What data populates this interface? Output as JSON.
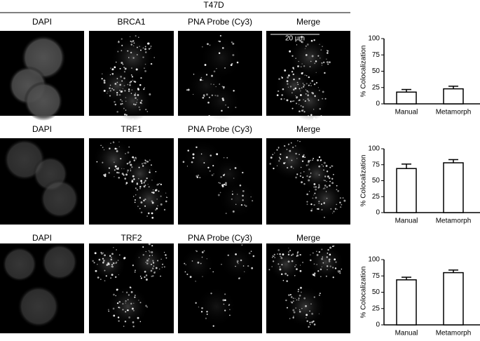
{
  "title": "T47D",
  "rows": [
    {
      "labels": [
        "DAPI",
        "BRCA1",
        "PNA Probe (Cy3)",
        "Merge"
      ]
    },
    {
      "labels": [
        "DAPI",
        "TRF1",
        "PNA Probe (Cy3)",
        "Merge"
      ]
    },
    {
      "labels": [
        "DAPI",
        "TRF2",
        "PNA Probe (Cy3)",
        "Merge"
      ]
    }
  ],
  "scale_bar": "20 µm",
  "chart_data": [
    {
      "type": "bar",
      "ylabel": "% Colocalization",
      "categories": [
        "Manual",
        "Metamorph"
      ],
      "values": [
        18,
        23
      ],
      "errors": [
        4,
        4
      ],
      "color": "#ffffff",
      "ylim": [
        0,
        100
      ],
      "yticks": [
        0,
        25,
        50,
        75,
        100
      ]
    },
    {
      "type": "bar",
      "ylabel": "% Colocalization",
      "categories": [
        "Manual",
        "Metamorph"
      ],
      "values": [
        69,
        78
      ],
      "errors": [
        7,
        5
      ],
      "color": "#ffffff",
      "ylim": [
        0,
        100
      ],
      "yticks": [
        0,
        25,
        50,
        75,
        100
      ]
    },
    {
      "type": "bar",
      "ylabel": "% Colocalization",
      "categories": [
        "Manual",
        "Metamorph"
      ],
      "values": [
        69,
        80
      ],
      "errors": [
        4,
        4
      ],
      "color": "#ffffff",
      "ylim": [
        0,
        100
      ],
      "yticks": [
        0,
        25,
        50,
        75,
        100
      ]
    }
  ]
}
